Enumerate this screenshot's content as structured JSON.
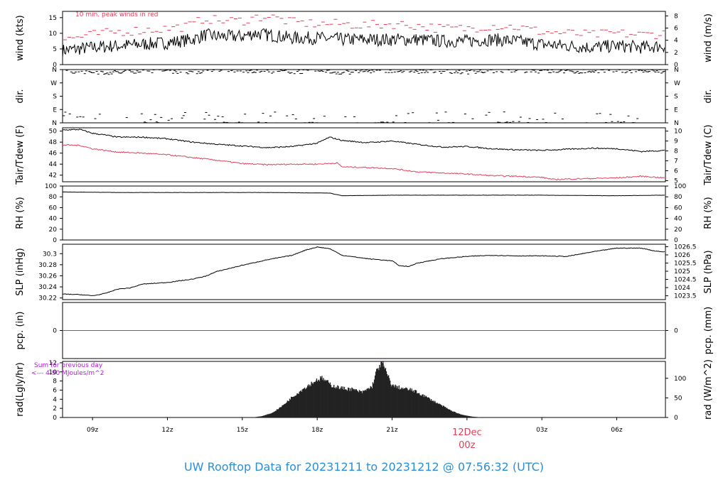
{
  "title": "UW Rooftop Data for 20231211  to  20231212 @ 07:56:32  (UTC)",
  "colors": {
    "main": "#000000",
    "peak": "#e0405a",
    "dewpoint": "#e0405a",
    "precip": "#3a6fd0",
    "annotation": "#b020d8",
    "title": "#2b8fd6"
  },
  "time_axis": {
    "range_hours": [
      7.8,
      31.95
    ],
    "ticks": [
      {
        "h": 9,
        "label": "09z"
      },
      {
        "h": 12,
        "label": "12z"
      },
      {
        "h": 15,
        "label": "15z"
      },
      {
        "h": 18,
        "label": "18z"
      },
      {
        "h": 21,
        "label": "21z"
      },
      {
        "h": 24,
        "label": "00z"
      },
      {
        "h": 27,
        "label": "03z"
      },
      {
        "h": 30,
        "label": "06z"
      }
    ],
    "day_label": "12Dec",
    "day_hour": 24
  },
  "chart_data": [
    {
      "type": "line",
      "name": "wind",
      "ylabel": "wind (kts)",
      "ylabel_right": "wind (m/s)",
      "ylim": [
        0,
        17
      ],
      "yticks": [
        0,
        5,
        10,
        15
      ],
      "right_ticks": [
        0,
        2,
        4,
        6,
        8
      ],
      "right_factor": 1.94384,
      "annotation": "10 min. peak winds in red",
      "series": [
        {
          "name": "wind",
          "x": [
            7.8,
            9,
            10,
            11,
            12,
            13,
            13.5,
            14,
            15,
            15.5,
            16,
            17,
            18,
            19,
            20,
            21,
            22,
            23,
            24,
            25,
            26,
            27,
            28,
            29,
            30,
            31,
            31.95
          ],
          "values": [
            4.5,
            5.5,
            6,
            6.5,
            7,
            8,
            9.5,
            9,
            9,
            10,
            9.5,
            8.5,
            8.5,
            8,
            8,
            8,
            8,
            7.5,
            7.5,
            8,
            7.5,
            6.5,
            6,
            5.5,
            6,
            5.5,
            6
          ]
        },
        {
          "name": "peak",
          "x": [
            7.8,
            9,
            10,
            11,
            12,
            13,
            13.5,
            14,
            15,
            15.5,
            16,
            17,
            18,
            19,
            20,
            21,
            22,
            23,
            24,
            25,
            26,
            27,
            28,
            29,
            30,
            31,
            31.95
          ],
          "values": [
            8,
            9.5,
            10.5,
            11,
            11.5,
            12.5,
            15,
            14,
            14,
            15,
            15.5,
            13.5,
            13,
            13,
            12.5,
            13,
            12.5,
            11.5,
            11.5,
            12.5,
            12,
            10.5,
            10,
            9.5,
            10,
            9.5,
            10
          ]
        }
      ]
    },
    {
      "type": "scatter",
      "name": "dir",
      "ylabel": "dir.",
      "ylabel_right": "dir.",
      "ylim": [
        0,
        360
      ],
      "ytick_values": [
        0,
        90,
        180,
        270,
        360
      ],
      "ytick_labels": [
        "N",
        "E",
        "S",
        "W",
        "N"
      ],
      "series": [
        {
          "name": "dir",
          "x": [
            7.8,
            9,
            10,
            11,
            12,
            13,
            14,
            15,
            16,
            17,
            18,
            19,
            20,
            21,
            22,
            23,
            24,
            25,
            26,
            27,
            28,
            29,
            30,
            31,
            31.95
          ],
          "values": [
            350,
            345,
            340,
            355,
            350,
            345,
            350,
            355,
            350,
            345,
            350,
            340,
            350,
            355,
            345,
            350,
            345,
            350,
            355,
            350,
            345,
            350,
            355,
            350,
            345
          ]
        }
      ]
    },
    {
      "type": "line",
      "name": "temp",
      "ylabel": "Tair/Tdew (F)",
      "ylabel_right": "Tair/Tdew (C)",
      "ylim": [
        40.8,
        50.6
      ],
      "yticks": [
        42,
        44,
        46,
        48,
        50
      ],
      "right_ticks": [
        5,
        6,
        7,
        8,
        9,
        10
      ],
      "series": [
        {
          "name": "Tair",
          "x": [
            7.8,
            8.5,
            9,
            9.5,
            10,
            11,
            12,
            13,
            14,
            15,
            16,
            17,
            18,
            18.5,
            19,
            20,
            21,
            22,
            23,
            24,
            25,
            26,
            27,
            28,
            29,
            30,
            31,
            31.95
          ],
          "values": [
            50.2,
            50.3,
            49.6,
            49.3,
            48.9,
            48.9,
            48.6,
            48,
            47.6,
            47.3,
            47,
            47.2,
            47.8,
            48.9,
            48.3,
            47.9,
            48.2,
            47.6,
            47.1,
            47.2,
            46.8,
            46.6,
            46.5,
            46.7,
            46.9,
            46.8,
            46.3,
            46.5
          ]
        },
        {
          "name": "Tdew",
          "x": [
            7.8,
            8.5,
            9,
            10,
            11,
            12,
            13,
            14,
            15,
            16,
            17,
            18,
            18.8,
            19,
            20,
            21,
            22,
            23,
            24,
            25,
            26,
            27,
            27.5,
            28,
            29,
            30,
            31,
            31.95
          ],
          "values": [
            47.5,
            47.4,
            46.8,
            46.2,
            46,
            45.7,
            45.2,
            44.7,
            44.1,
            43.9,
            44,
            44,
            44.2,
            43.5,
            43.4,
            43.2,
            42.6,
            42.4,
            42.2,
            41.9,
            41.8,
            41.6,
            41.2,
            41.3,
            41.4,
            41.5,
            41.8,
            41.5
          ]
        }
      ]
    },
    {
      "type": "line",
      "name": "rh",
      "ylabel": "RH (%)",
      "ylabel_right": "RH (%)",
      "ylim": [
        0,
        100
      ],
      "yticks": [
        0,
        20,
        40,
        60,
        80,
        100
      ],
      "right_ticks": [
        0,
        20,
        40,
        60,
        80,
        100
      ],
      "series": [
        {
          "name": "RH",
          "x": [
            7.8,
            10,
            13,
            16,
            18.5,
            19,
            21,
            24,
            27,
            30,
            31.95
          ],
          "values": [
            89,
            88,
            88,
            88,
            87,
            82,
            83,
            83,
            83,
            82,
            83
          ]
        }
      ]
    },
    {
      "type": "line",
      "name": "slp",
      "ylabel": "SLP (inHg)",
      "ylabel_right": "SLP (hPa)",
      "ylim": [
        30.217,
        30.317
      ],
      "yticks": [
        30.22,
        30.24,
        30.26,
        30.28,
        30.3
      ],
      "right_ticks": [
        1023.5,
        1024,
        1024.5,
        1025,
        1025.5,
        1026,
        1026.5
      ],
      "right_labels": [
        "1023.5",
        "1024",
        "1024.5",
        "1025",
        "1025.5",
        "1026",
        "1026.5"
      ],
      "series": [
        {
          "name": "SLP",
          "x": [
            7.8,
            8.5,
            9,
            9.5,
            10,
            10.5,
            11,
            12,
            13,
            13.5,
            14,
            15,
            16,
            17,
            17.5,
            18,
            18.5,
            19,
            20,
            21,
            21.3,
            21.7,
            22,
            23,
            24,
            25,
            26,
            27,
            28,
            28.5,
            29,
            30,
            31,
            31.5,
            31.95
          ],
          "values": [
            30.227,
            30.226,
            30.224,
            30.228,
            30.236,
            30.238,
            30.245,
            30.248,
            30.254,
            30.259,
            30.268,
            30.279,
            30.289,
            30.297,
            30.306,
            30.312,
            30.309,
            30.297,
            30.291,
            30.287,
            30.278,
            30.277,
            30.283,
            30.291,
            30.295,
            30.297,
            30.296,
            30.296,
            30.295,
            30.299,
            30.303,
            30.31,
            30.31,
            30.305,
            30.303
          ]
        }
      ]
    },
    {
      "type": "line",
      "name": "precip",
      "ylabel": "pcp. (in)",
      "ylabel_right": "pcp. (mm)",
      "ylim": [
        -1,
        1
      ],
      "yticks": [
        0
      ],
      "right_ticks": [
        0
      ],
      "series": [
        {
          "name": "pcp",
          "x": [
            7.8,
            31.95
          ],
          "values": [
            0,
            0
          ]
        }
      ]
    },
    {
      "type": "area",
      "name": "rad",
      "ylabel": "rad(Lgly/hr)",
      "ylabel_right": "rad (W/m^2)",
      "ylim": [
        0,
        12.3
      ],
      "yticks": [
        0,
        2,
        4,
        6,
        8,
        10,
        12
      ],
      "right_ticks": [
        0,
        50,
        100
      ],
      "right_factor": 0.086,
      "annotation_lines": [
        "Sum for previous day",
        "<--- 4.90 MJoules/m^2"
      ],
      "peak_label": "1",
      "series": [
        {
          "name": "rad",
          "x": [
            15.4,
            15.8,
            16.2,
            16.6,
            17,
            17.5,
            18,
            18.2,
            18.6,
            19,
            19.4,
            19.8,
            20.2,
            20.4,
            20.6,
            20.8,
            21,
            21.4,
            21.8,
            22.2,
            22.6,
            23,
            23.4,
            23.8,
            24.2,
            24.6
          ],
          "values": [
            0,
            0.3,
            1,
            2.5,
            4.5,
            6.5,
            8.3,
            8.6,
            7,
            6.4,
            6.2,
            5.5,
            6.8,
            10.5,
            12.1,
            9.5,
            7,
            6.4,
            6,
            5,
            3.8,
            2.6,
            1.4,
            0.6,
            0.2,
            0
          ]
        }
      ]
    }
  ]
}
